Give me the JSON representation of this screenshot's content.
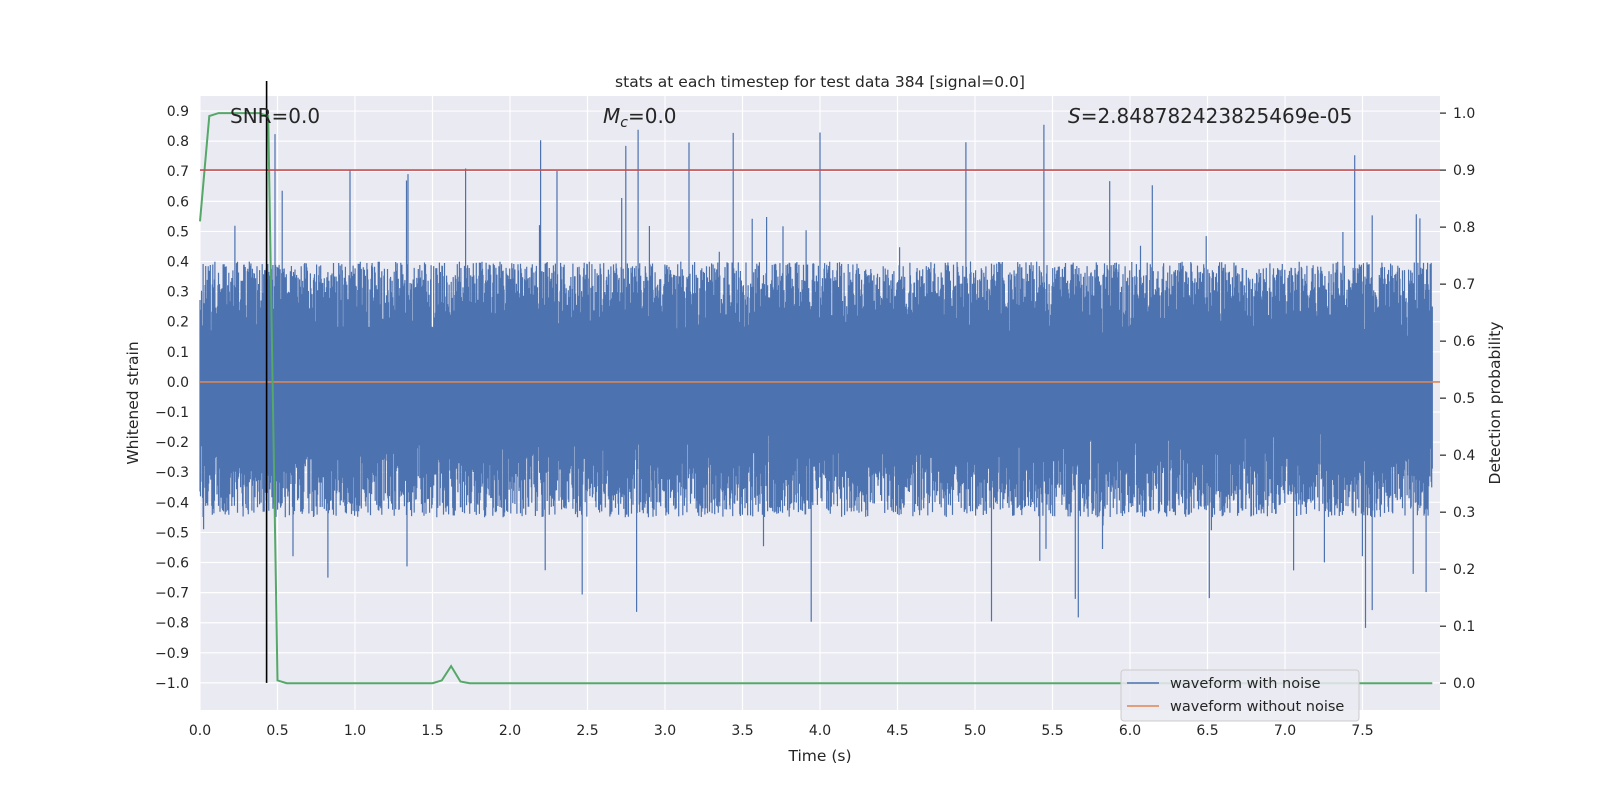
{
  "chart_data": {
    "type": "line",
    "title": "stats at each timestep for test data 384 [signal=0.0]",
    "xlabel": "Time (s)",
    "ylabel": "Whitened strain",
    "y2label": "Detection probability",
    "xlim": [
      0.0,
      8.0
    ],
    "ylim": [
      -1.09,
      0.95
    ],
    "y2lim": [
      -0.047,
      1.03
    ],
    "x_ticks": [
      "0.0",
      "0.5",
      "1.0",
      "1.5",
      "2.0",
      "2.5",
      "3.0",
      "3.5",
      "4.0",
      "4.5",
      "5.0",
      "5.5",
      "6.0",
      "6.5",
      "7.0",
      "7.5"
    ],
    "y_ticks": [
      "0.9",
      "0.8",
      "0.7",
      "0.6",
      "0.5",
      "0.4",
      "0.3",
      "0.2",
      "0.1",
      "0.0",
      "−0.1",
      "−0.2",
      "−0.3",
      "−0.4",
      "−0.5",
      "−0.6",
      "−0.7",
      "−0.8",
      "−0.9",
      "−1.0"
    ],
    "y2_ticks": [
      "1.0",
      "0.9",
      "0.8",
      "0.7",
      "0.6",
      "0.5",
      "0.4",
      "0.3",
      "0.2",
      "0.1",
      "0.0"
    ],
    "annotations": {
      "snr": "SNR=0.0",
      "mc_symbol": "M",
      "mc_subscript": "c",
      "mc_value": "=0.0",
      "s_symbol": "S",
      "s_value": "=2.848782423825469e-05"
    },
    "series": [
      {
        "name": "waveform with noise",
        "color": "#4c72b0",
        "axis": "left",
        "description_range": {
          "typical_min": -0.45,
          "typical_max": 0.4,
          "peak_max": 0.86,
          "peak_min": -0.82
        }
      },
      {
        "name": "waveform without noise",
        "color": "#dd8452",
        "axis": "left",
        "x": [
          0.0,
          8.0
        ],
        "y": [
          0.0,
          0.0
        ]
      },
      {
        "color": "#55a868",
        "axis": "right",
        "x": [
          0.0,
          0.06,
          0.12,
          0.2,
          0.3,
          0.38,
          0.44,
          0.5,
          0.56,
          0.7,
          1.0,
          1.5,
          1.56,
          1.62,
          1.68,
          1.74,
          2.0,
          4.0,
          6.0,
          7.95
        ],
        "y": [
          0.81,
          0.995,
          1.0,
          1.0,
          1.0,
          1.0,
          0.995,
          0.005,
          0.0,
          0.0,
          0.0,
          0.0,
          0.005,
          0.03,
          0.003,
          0.0,
          0.0,
          0.0,
          0.0,
          0.0
        ]
      },
      {
        "color": "#c44e52",
        "axis": "right",
        "x": [
          0.0,
          8.0
        ],
        "y": [
          0.9,
          0.9
        ]
      },
      {
        "color": "#000000",
        "axis": "left",
        "x": [
          0.43,
          0.43
        ],
        "y": [
          -1.0,
          1.0
        ]
      }
    ],
    "legend": {
      "placement": "lower-right",
      "entries": [
        "waveform with noise",
        "waveform without noise"
      ]
    },
    "grid": true
  }
}
